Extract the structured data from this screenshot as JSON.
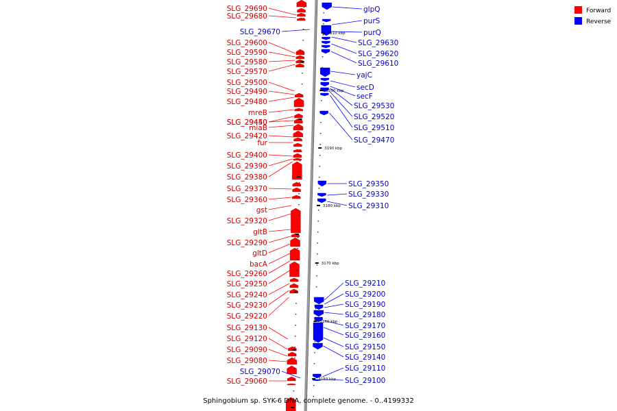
{
  "caption": "Sphingobium sp. SYK-6 DNA, complete genome. - 0..4199332",
  "legend": [
    {
      "label": "Forward",
      "color": "#ff0000"
    },
    {
      "label": "Reverse",
      "color": "#0000ff"
    }
  ],
  "colors": {
    "forward": "#ff0000",
    "reverse": "#0000ff",
    "backbone": "#999999"
  },
  "ticks": [
    "3210 kbp",
    "3200 kbp",
    "3190 kbp",
    "3180 kbp",
    "3170 kbp",
    "3160 kbp",
    "3150 kbp"
  ],
  "forward_labels": [
    "SLG_29690",
    "SLG_29680",
    "SLG_29600",
    "SLG_29590",
    "SLG_29580",
    "SLG_29570",
    "SLG_29500",
    "SLG_29490",
    "SLG_29480",
    "mreB",
    "SLG_29450",
    "SLG_29440",
    "miaB",
    "SLG_29420",
    "fur",
    "SLG_29400",
    "SLG_29390",
    "SLG_29380",
    "SLG_29370",
    "SLG_29360",
    "gst",
    "SLG_29320",
    "gltB",
    "SLG_29290",
    "gltD",
    "bacA",
    "SLG_29260",
    "SLG_29250",
    "SLG_29240",
    "SLG_29230",
    "SLG_29220",
    "SLG_29130",
    "SLG_29120",
    "SLG_29090",
    "SLG_29080",
    "SLG_29060"
  ],
  "forward_side_reverse_labels": [
    "SLG_29670",
    "SLG_29070"
  ],
  "reverse_labels": [
    "glpQ",
    "purS",
    "purQ",
    "SLG_29630",
    "SLG_29620",
    "SLG_29610",
    "yajC",
    "secD",
    "secF",
    "SLG_29530",
    "SLG_29520",
    "SLG_29510",
    "SLG_29470",
    "SLG_29350",
    "SLG_29330",
    "SLG_29310",
    "SLG_29210",
    "SLG_29200",
    "SLG_29190",
    "SLG_29180",
    "SLG_29170",
    "SLG_29160",
    "SLG_29150",
    "SLG_29140",
    "SLG_29110",
    "SLG_29100"
  ]
}
